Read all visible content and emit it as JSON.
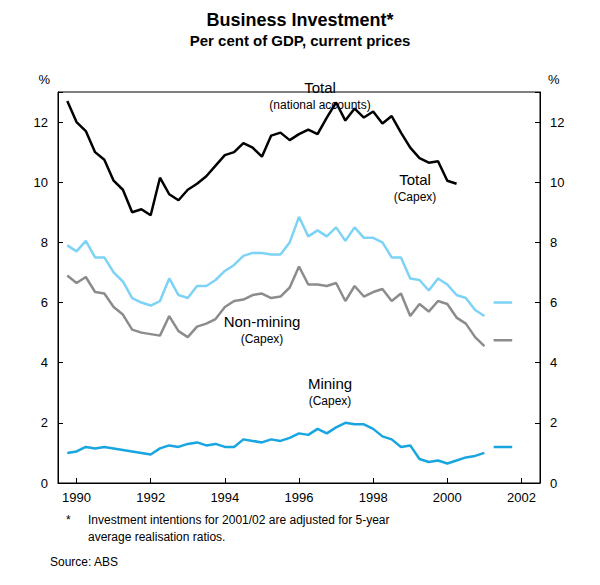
{
  "chart_data": {
    "type": "line",
    "title": "Business Investment*",
    "subtitle": "Per cent of GDP, current prices",
    "y_label": "%",
    "x": [
      1989.75,
      1990,
      1990.25,
      1990.5,
      1990.75,
      1991,
      1991.25,
      1991.5,
      1991.75,
      1992,
      1992.25,
      1992.5,
      1992.75,
      1993,
      1993.25,
      1993.5,
      1993.75,
      1994,
      1994.25,
      1994.5,
      1994.75,
      1995,
      1995.25,
      1995.5,
      1995.75,
      1996,
      1996.25,
      1996.5,
      1996.75,
      1997,
      1997.25,
      1997.5,
      1997.75,
      1998,
      1998.25,
      1998.5,
      1998.75,
      1999,
      1999.25,
      1999.5,
      1999.75,
      2000,
      2000.25,
      2000.5,
      2000.75,
      2001
    ],
    "xlim": [
      1989.5,
      2002.5
    ],
    "xticks": [
      1990,
      1992,
      1994,
      1996,
      1998,
      2000,
      2002
    ],
    "ylim": [
      0,
      13
    ],
    "yticks": [
      0,
      2,
      4,
      6,
      8,
      10,
      12
    ],
    "grid": false,
    "intentions_x": [
      2001.25,
      2001.75
    ],
    "series": [
      {
        "label_lines": [
          "Total",
          "(national accounts)"
        ],
        "color": "#000000",
        "values": [
          12.7,
          12.0,
          11.7,
          11.0,
          10.75,
          10.05,
          9.75,
          9.0,
          9.1,
          8.9,
          10.15,
          9.6,
          9.4,
          9.75,
          9.95,
          10.2,
          10.55,
          10.9,
          11.0,
          11.3,
          11.15,
          10.85,
          11.55,
          11.65,
          11.4,
          11.6,
          11.75,
          11.6,
          12.15,
          12.65,
          12.05,
          12.45,
          12.15,
          12.35,
          11.95,
          12.2,
          11.65,
          11.15,
          10.8,
          10.65,
          10.7,
          10.05,
          9.95,
          null,
          null,
          null
        ]
      },
      {
        "label_lines": [
          "Total",
          "(Capex)"
        ],
        "color": "#7dd3f5",
        "values": [
          7.9,
          7.7,
          8.05,
          7.5,
          7.5,
          7.0,
          6.7,
          6.15,
          6.0,
          5.9,
          6.05,
          6.8,
          6.25,
          6.15,
          6.55,
          6.55,
          6.75,
          7.05,
          7.25,
          7.55,
          7.65,
          7.65,
          7.6,
          7.6,
          8.0,
          8.85,
          8.2,
          8.4,
          8.2,
          8.5,
          8.05,
          8.5,
          8.15,
          8.15,
          8.0,
          7.5,
          7.5,
          6.8,
          6.75,
          6.4,
          6.8,
          6.6,
          6.25,
          6.15,
          5.75,
          5.55
        ],
        "intentions": [
          6.0,
          6.0
        ]
      },
      {
        "label_lines": [
          "Non-mining",
          "(Capex)"
        ],
        "color": "#8c8c8c",
        "values": [
          6.9,
          6.65,
          6.85,
          6.35,
          6.3,
          5.85,
          5.6,
          5.1,
          5.0,
          4.95,
          4.9,
          5.55,
          5.05,
          4.85,
          5.2,
          5.3,
          5.45,
          5.85,
          6.05,
          6.1,
          6.25,
          6.3,
          6.15,
          6.2,
          6.5,
          7.2,
          6.6,
          6.6,
          6.55,
          6.65,
          6.05,
          6.55,
          6.2,
          6.35,
          6.45,
          6.05,
          6.3,
          5.55,
          5.95,
          5.7,
          6.05,
          5.95,
          5.5,
          5.3,
          4.85,
          4.55
        ],
        "intentions": [
          4.75,
          4.75
        ]
      },
      {
        "label_lines": [
          "Mining",
          "(Capex)"
        ],
        "color": "#18a5e0",
        "values": [
          1.0,
          1.05,
          1.2,
          1.15,
          1.2,
          1.15,
          1.1,
          1.05,
          1.0,
          0.95,
          1.15,
          1.25,
          1.2,
          1.3,
          1.35,
          1.25,
          1.3,
          1.2,
          1.2,
          1.45,
          1.4,
          1.35,
          1.45,
          1.4,
          1.5,
          1.65,
          1.6,
          1.8,
          1.65,
          1.85,
          2.0,
          1.95,
          1.95,
          1.8,
          1.55,
          1.45,
          1.2,
          1.25,
          0.8,
          0.7,
          0.75,
          0.65,
          0.75,
          0.85,
          0.9,
          1.0
        ],
        "intentions": [
          1.2,
          1.2
        ]
      }
    ],
    "footnote_symbol": "*",
    "footnote_lines": [
      "Investment intentions for 2001/02 are adjusted for 5-year",
      "average realisation ratios."
    ],
    "source": "Source: ABS"
  }
}
